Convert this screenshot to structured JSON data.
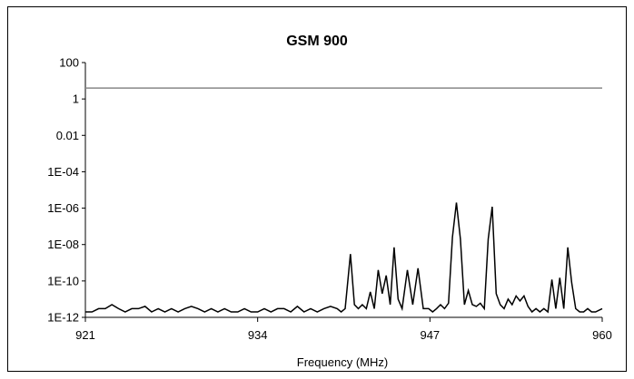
{
  "chart_data": {
    "type": "line",
    "title": "GSM 900",
    "xlabel": "Frequency (MHz)",
    "ylabel": "",
    "xlim": [
      921,
      960
    ],
    "x_ticks": [
      921,
      934,
      947,
      960
    ],
    "x_tick_labels": [
      "921",
      "934",
      "947",
      "960"
    ],
    "y_scale": "log",
    "ylim": [
      1e-12,
      100
    ],
    "y_ticks": [
      1e-12,
      1e-10,
      1e-08,
      1e-06,
      0.0001,
      0.01,
      1,
      100
    ],
    "y_tick_labels": [
      "1E-12",
      "1E-10",
      "1E-08",
      "1E-06",
      "1E-04",
      "0.01",
      "1",
      "100"
    ],
    "grid": false,
    "legend": "none",
    "series": [
      {
        "color": "#000000",
        "x": [
          921,
          921.5,
          922,
          922.5,
          923,
          923.5,
          924,
          924.5,
          925,
          925.5,
          926,
          926.5,
          927,
          927.5,
          928,
          928.5,
          929,
          929.5,
          930,
          930.5,
          931,
          931.5,
          932,
          932.5,
          933,
          933.5,
          934,
          934.5,
          935,
          935.5,
          936,
          936.5,
          937,
          937.5,
          938,
          938.5,
          939,
          939.5,
          940,
          940.3,
          940.6,
          941,
          941.3,
          941.6,
          941.9,
          942.2,
          942.5,
          942.8,
          943.1,
          943.4,
          943.7,
          944,
          944.3,
          944.6,
          944.9,
          945.3,
          945.7,
          946.1,
          946.5,
          946.9,
          947.2,
          947.5,
          947.8,
          948.1,
          948.4,
          948.7,
          949,
          949.3,
          949.6,
          949.9,
          950.2,
          950.5,
          950.8,
          951.1,
          951.4,
          951.7,
          952,
          952.3,
          952.6,
          952.9,
          953.2,
          953.5,
          953.8,
          954.1,
          954.4,
          954.7,
          955,
          955.3,
          955.6,
          955.9,
          956.2,
          956.5,
          956.8,
          957.1,
          957.4,
          957.7,
          958,
          958.3,
          958.6,
          958.9,
          959.2,
          959.5,
          960
        ],
        "y": [
          2e-12,
          2e-12,
          3e-12,
          3e-12,
          5e-12,
          3e-12,
          2e-12,
          3e-12,
          3e-12,
          4e-12,
          2e-12,
          3e-12,
          2e-12,
          3e-12,
          2e-12,
          3e-12,
          4e-12,
          3e-12,
          2e-12,
          3e-12,
          2e-12,
          3e-12,
          2e-12,
          2e-12,
          3e-12,
          2e-12,
          2e-12,
          3e-12,
          2e-12,
          3e-12,
          3e-12,
          2e-12,
          4e-12,
          2e-12,
          3e-12,
          2e-12,
          3e-12,
          4e-12,
          3e-12,
          2e-12,
          3e-12,
          3e-09,
          5e-12,
          3e-12,
          5e-12,
          3e-12,
          2.5e-11,
          3e-12,
          4e-10,
          2e-11,
          2e-10,
          5e-12,
          7e-09,
          1e-11,
          3e-12,
          4e-10,
          5e-12,
          5e-10,
          3e-12,
          3e-12,
          2e-12,
          3e-12,
          5e-12,
          3e-12,
          6e-12,
          2.5e-08,
          2e-06,
          2e-08,
          5e-12,
          3e-11,
          5e-12,
          4e-12,
          6e-12,
          3e-12,
          2e-08,
          1.2e-06,
          2e-11,
          5e-12,
          3e-12,
          1e-11,
          5e-12,
          1.5e-11,
          8e-12,
          1.5e-11,
          4e-12,
          2e-12,
          3e-12,
          2e-12,
          3e-12,
          2e-12,
          1.2e-10,
          3e-12,
          1.5e-10,
          3e-12,
          7e-09,
          8e-11,
          3e-12,
          2e-12,
          2e-12,
          3e-12,
          2e-12,
          2e-12,
          3e-12
        ]
      },
      {
        "color": "#888888",
        "x": [
          921,
          960
        ],
        "y": [
          4,
          4
        ]
      }
    ]
  }
}
